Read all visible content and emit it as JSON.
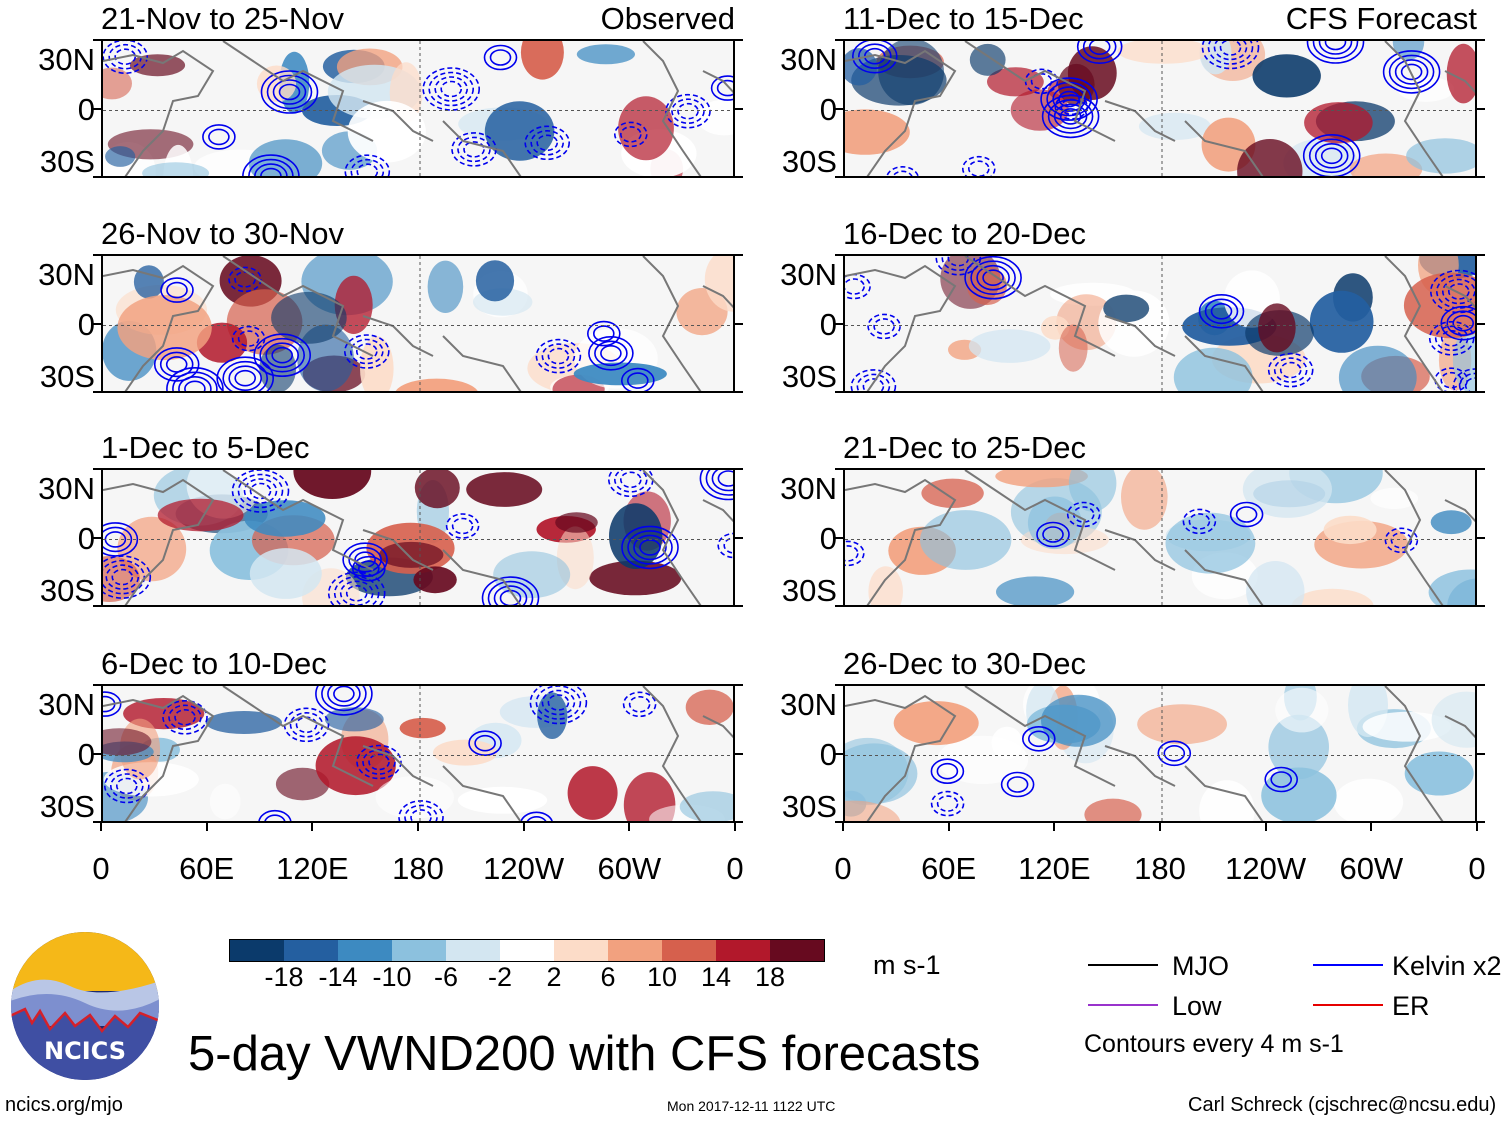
{
  "panels": {
    "left": [
      {
        "title": "21-Nov to 25-Nov",
        "source": "Observed"
      },
      {
        "title": "26-Nov to 30-Nov",
        "source": ""
      },
      {
        "title": "1-Dec to 5-Dec",
        "source": ""
      },
      {
        "title": "6-Dec to 10-Dec",
        "source": ""
      }
    ],
    "right": [
      {
        "title": "11-Dec to 15-Dec",
        "source": "CFS Forecast"
      },
      {
        "title": "16-Dec to 20-Dec",
        "source": ""
      },
      {
        "title": "21-Dec to 25-Dec",
        "source": ""
      },
      {
        "title": "26-Dec to 30-Dec",
        "source": ""
      }
    ]
  },
  "lat_labels": [
    "30N",
    "0",
    "30S"
  ],
  "lon_labels": [
    "0",
    "60E",
    "120E",
    "180",
    "120W",
    "60W",
    "0"
  ],
  "colorbar": {
    "colors": [
      "#0b3a6b",
      "#245fa0",
      "#3d8ac1",
      "#8cc1de",
      "#d3e6f1",
      "#ffffff",
      "#fcdcc8",
      "#f2a17f",
      "#d6604d",
      "#b2182b",
      "#670a1f"
    ],
    "labels": [
      "-18",
      "-14",
      "-10",
      "-6",
      "-2",
      "2",
      "6",
      "10",
      "14",
      "18"
    ],
    "units": "m s-1"
  },
  "legend": {
    "mjo": {
      "label": "MJO",
      "color": "#000000"
    },
    "kelvin": {
      "label": "Kelvin x2",
      "color": "#0000ff"
    },
    "low": {
      "label": "Low",
      "color": "#9933cc"
    },
    "er": {
      "label": "ER",
      "color": "#e60000"
    },
    "contour_note": "Contours every 4 m s-1"
  },
  "logo": {
    "text": "NCICS"
  },
  "title": "5-day VWND200 with CFS forecasts",
  "footer": {
    "url": "ncics.org/mjo",
    "timestamp": "Mon 2017-12-11 1122 UTC",
    "author": "Carl Schreck (cjschrec@ncsu.edu)"
  }
}
